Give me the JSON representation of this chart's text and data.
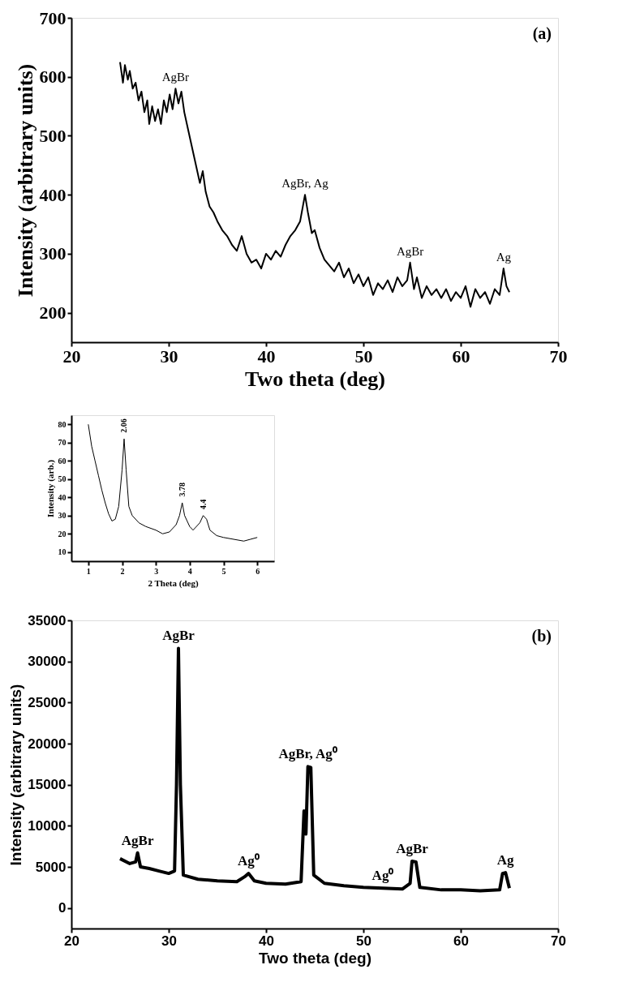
{
  "chart_data": [
    {
      "type": "line",
      "xlabel": "Two theta (deg)",
      "ylabel": "Intensity (arbitrary units)",
      "xlim": [
        20,
        70
      ],
      "xticks": [
        20,
        30,
        40,
        50,
        60,
        70
      ],
      "ylim": [
        150,
        700
      ],
      "yticks": [
        200,
        300,
        400,
        500,
        600,
        700
      ],
      "grid": false,
      "marker": "none",
      "line_style": "solid",
      "x": [
        25.0,
        25.3,
        25.5,
        25.8,
        26.0,
        26.3,
        26.6,
        26.9,
        27.2,
        27.5,
        27.8,
        28.0,
        28.3,
        28.6,
        28.9,
        29.2,
        29.5,
        29.8,
        30.1,
        30.4,
        30.7,
        31.0,
        31.3,
        31.6,
        32.0,
        32.4,
        32.8,
        33.2,
        33.5,
        33.8,
        34.2,
        34.6,
        35.0,
        35.5,
        36.0,
        36.5,
        37.0,
        37.5,
        38.0,
        38.5,
        39.0,
        39.5,
        40.0,
        40.5,
        41.0,
        41.5,
        42.0,
        42.5,
        43.0,
        43.5,
        44.0,
        44.3,
        44.7,
        45.0,
        45.5,
        46.0,
        46.5,
        47.0,
        47.5,
        48.0,
        48.5,
        49.0,
        49.5,
        50.0,
        50.5,
        51.0,
        51.5,
        52.0,
        52.5,
        53.0,
        53.5,
        54.0,
        54.5,
        54.8,
        55.2,
        55.5,
        56.0,
        56.5,
        57.0,
        57.5,
        58.0,
        58.5,
        59.0,
        59.5,
        60.0,
        60.5,
        61.0,
        61.5,
        62.0,
        62.5,
        63.0,
        63.5,
        64.0,
        64.4,
        64.7,
        65.0
      ],
      "series": [
        {
          "color": "#000000",
          "values": [
            625,
            590,
            620,
            595,
            610,
            580,
            590,
            560,
            575,
            540,
            560,
            520,
            550,
            525,
            545,
            520,
            560,
            540,
            570,
            545,
            580,
            555,
            575,
            540,
            510,
            480,
            450,
            420,
            440,
            405,
            380,
            370,
            355,
            340,
            330,
            315,
            305,
            330,
            300,
            285,
            290,
            275,
            300,
            290,
            305,
            295,
            315,
            330,
            340,
            355,
            400,
            370,
            335,
            340,
            310,
            290,
            280,
            270,
            285,
            260,
            275,
            250,
            265,
            245,
            260,
            230,
            250,
            240,
            255,
            235,
            260,
            245,
            255,
            285,
            240,
            260,
            225,
            245,
            230,
            240,
            225,
            240,
            220,
            235,
            225,
            245,
            210,
            240,
            225,
            235,
            215,
            240,
            230,
            275,
            245,
            235
          ]
        }
      ],
      "annotations": [
        "(a)",
        {
          "text": "AgBr",
          "x": 30.7,
          "y": 580
        },
        {
          "text": "AgBr, Ag",
          "x": 44.0,
          "y": 400
        },
        {
          "text": "AgBr",
          "x": 54.8,
          "y": 285
        },
        {
          "text": "Ag",
          "x": 64.4,
          "y": 275
        }
      ]
    },
    {
      "type": "line",
      "xlabel": "2 Theta (deg)",
      "ylabel": "Intensity (arb.)",
      "xlim": [
        0.5,
        6.5
      ],
      "xticks": [
        1,
        2,
        3,
        4,
        5,
        6
      ],
      "ylim": [
        5,
        85
      ],
      "yticks": [
        10,
        20,
        30,
        40,
        50,
        60,
        70,
        80
      ],
      "grid": false,
      "marker": "none",
      "line_style": "solid",
      "x": [
        1.0,
        1.1,
        1.2,
        1.3,
        1.4,
        1.5,
        1.6,
        1.7,
        1.8,
        1.9,
        2.0,
        2.06,
        2.12,
        2.2,
        2.3,
        2.5,
        2.7,
        3.0,
        3.2,
        3.4,
        3.6,
        3.7,
        3.78,
        3.85,
        4.0,
        4.1,
        4.3,
        4.4,
        4.5,
        4.6,
        4.8,
        5.0,
        5.3,
        5.6,
        5.8,
        6.0
      ],
      "series": [
        {
          "color": "#000000",
          "values": [
            80,
            68,
            60,
            52,
            44,
            37,
            31,
            27,
            28,
            35,
            55,
            72,
            55,
            35,
            30,
            26,
            24,
            22,
            20,
            21,
            25,
            30,
            37,
            30,
            24,
            22,
            26,
            30,
            28,
            22,
            19,
            18,
            17,
            16,
            17,
            18
          ]
        }
      ],
      "annotations": [
        {
          "text": "2.06",
          "x": 2.06,
          "y": 74
        },
        {
          "text": "3.78",
          "x": 3.78,
          "y": 39
        },
        {
          "text": "4.4",
          "x": 4.4,
          "y": 32
        }
      ]
    },
    {
      "type": "line",
      "xlabel": "Two theta (deg)",
      "ylabel": "Intensity (arbitrary units)",
      "xlim": [
        20,
        70
      ],
      "xticks": [
        20,
        30,
        40,
        50,
        60,
        70
      ],
      "ylim": [
        -2500,
        35000
      ],
      "yticks": [
        0,
        5000,
        10000,
        15000,
        20000,
        25000,
        30000,
        35000
      ],
      "grid": false,
      "marker": "none",
      "line_style": "solid",
      "x": [
        25,
        26,
        26.6,
        26.8,
        27.1,
        28,
        29,
        30,
        30.6,
        30.8,
        31.0,
        31.2,
        31.5,
        33,
        35,
        37,
        37.8,
        38.2,
        38.8,
        40,
        42,
        43.6,
        43.9,
        44.1,
        44.3,
        44.6,
        44.9,
        46,
        48,
        50,
        52,
        54,
        54.8,
        55.0,
        55.4,
        55.8,
        58,
        60,
        62,
        64,
        64.3,
        64.6,
        65
      ],
      "series": [
        {
          "color": "#000000",
          "values": [
            6000,
            5400,
            5600,
            6700,
            5000,
            4800,
            4500,
            4200,
            4500,
            15000,
            31600,
            15000,
            4000,
            3500,
            3300,
            3200,
            3800,
            4200,
            3300,
            3000,
            2900,
            3200,
            11800,
            9000,
            17200,
            17100,
            4000,
            3000,
            2700,
            2500,
            2400,
            2300,
            3000,
            5700,
            5600,
            2500,
            2200,
            2200,
            2100,
            2200,
            4200,
            4300,
            2400
          ]
        }
      ],
      "annotations": [
        "(b)",
        {
          "text": "AgBr",
          "x": 26.8,
          "y": 6700
        },
        {
          "text": "AgBr",
          "x": 31.0,
          "y": 31600
        },
        {
          "text": "Ag⁰",
          "x": 38.2,
          "y": 4200
        },
        {
          "text": "AgBr, Ag⁰",
          "x": 44.3,
          "y": 17200
        },
        {
          "text": "Ag⁰",
          "x": 52,
          "y": 2400
        },
        {
          "text": "AgBr",
          "x": 55.0,
          "y": 5700
        },
        {
          "text": "Ag",
          "x": 64.6,
          "y": 4300
        }
      ]
    }
  ]
}
